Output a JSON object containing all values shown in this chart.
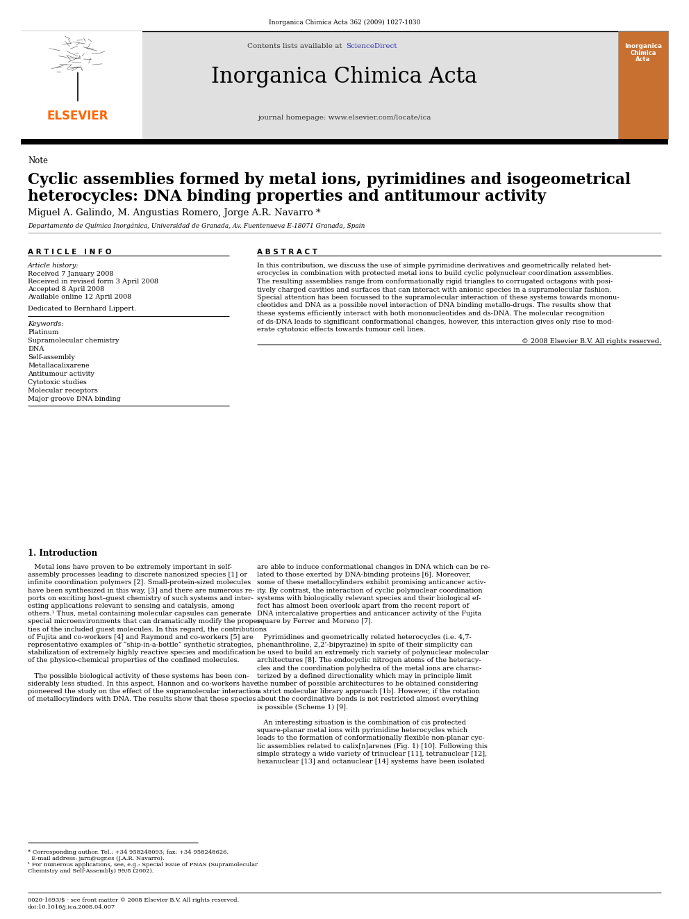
{
  "journal_ref": "Inorganica Chimica Acta 362 (2009) 1027-1030",
  "contents_line": "Contents lists available at ",
  "sciencedirect_text": "ScienceDirect",
  "sciencedirect_color": "#3333AA",
  "journal_name": "Inorganica Chimica Acta",
  "journal_homepage": "journal homepage: www.elsevier.com/locate/ica",
  "elsevier_color": "#FF6600",
  "header_bg": "#E0E0E0",
  "note_label": "Note",
  "article_title_line1": "Cyclic assemblies formed by metal ions, pyrimidines and isogeometrical",
  "article_title_line2": "heterocycles: DNA binding properties and antitumour activity",
  "authors": "Miguel A. Galindo, M. Angustias Romero, Jorge A.R. Navarro *",
  "affiliation": "Departamento de Química Inorgánica, Universidad de Granada, Av. Fuentenueva E-18071 Granada, Spain",
  "article_info_header": "A R T I C L E   I N F O",
  "abstract_header": "A B S T R A C T",
  "article_history_label": "Article history:",
  "received": "Received 7 January 2008",
  "revised": "Received in revised form 3 April 2008",
  "accepted": "Accepted 8 April 2008",
  "available": "Available online 12 April 2008",
  "dedicated": "Dedicated to Bernhard Lippert.",
  "keywords_label": "Keywords:",
  "keywords": [
    "Platinum",
    "Supramolecular chemistry",
    "DNA",
    "Self-assembly",
    "Metallacalixarene",
    "Antitumour activity",
    "Cytotoxic studies",
    "Molecular receptors",
    "Major groove DNA binding"
  ],
  "abstract_lines": [
    "In this contribution, we discuss the use of simple pyrimidine derivatives and geometrically related het-",
    "erocycles in combination with protected metal ions to build cyclic polynuclear coordination assemblies.",
    "The resulting assemblies range from conformationally rigid triangles to corrugated octagons with posi-",
    "tively charged cavities and surfaces that can interact with anionic species in a supramolecular fashion.",
    "Special attention has been focussed to the supramolecular interaction of these systems towards mononu-",
    "cleotides and DNA as a possible novel interaction of DNA binding metallo-drugs. The results show that",
    "these systems efficiently interact with both mononucleotides and ds-DNA. The molecular recognition",
    "of ds-DNA leads to significant conformational changes, however, this interaction gives only rise to mod-",
    "erate cytotoxic effects towards tumour cell lines."
  ],
  "copyright": "© 2008 Elsevier B.V. All rights reserved.",
  "intro_header": "1. Introduction",
  "left_intro_lines": [
    "   Metal ions have proven to be extremely important in self-",
    "assembly processes leading to discrete nanosized species [1] or",
    "infinite coordination polymers [2]. Small-protein-sized molecules",
    "have been synthesized in this way, [3] and there are numerous re-",
    "ports on exciting host–guest chemistry of such systems and inter-",
    "esting applications relevant to sensing and catalysis, among",
    "others.¹ Thus, metal containing molecular capsules can generate",
    "special microenvironments that can dramatically modify the proper-",
    "ties of the included guest molecules. In this regard, the contributions",
    "of Fujita and co-workers [4] and Raymond and co-workers [5] are",
    "representative examples of “ship-in-a-bottle” synthetic strategies,",
    "stabilization of extremely highly reactive species and modification",
    "of the physico-chemical properties of the confined molecules.",
    "",
    "   The possible biological activity of these systems has been con-",
    "siderably less studied. In this aspect, Hannon and co-workers have",
    "pioneered the study on the effect of the supramolecular interaction",
    "of metallocylinders with DNA. The results show that these species"
  ],
  "right_intro_lines": [
    "are able to induce conformational changes in DNA which can be re-",
    "lated to those exerted by DNA-binding proteins [6]. Moreover,",
    "some of these metallocylinders exhibit promising anticancer activ-",
    "ity. By contrast, the interaction of cyclic polynuclear coordination",
    "systems with biologically relevant species and their biological ef-",
    "fect has almost been overlook apart from the recent report of",
    "DNA intercalative properties and anticancer activity of the Fujita",
    "square by Ferrer and Moreno [7].",
    "",
    "   Pyrimidines and geometrically related heterocycles (i.e. 4,7-",
    "phenanthroline, 2,2’-bipyrazine) in spite of their simplicity can",
    "be used to build an extremely rich variety of polynuclear molecular",
    "architectures [8]. The endocyclic nitrogen atoms of the heteracy-",
    "cles and the coordination polyhedra of the metal ions are charac-",
    "terized by a defined directionality which may in principle limit",
    "the number of possible architectures to be obtained considering",
    "a strict molecular library approach [1b]. However, if the rotation",
    "about the coordinative bonds is not restricted almost everything",
    "is possible (Scheme 1) [9].",
    "",
    "   An interesting situation is the combination of cis protected",
    "square-planar metal ions with pyrimidine heterocycles which",
    "leads to the formation of conformationally flexible non-planar cyc-",
    "lic assemblies related to calix[n]arenes (Fig. 1) [10]. Following this",
    "simple strategy a wide variety of trinuclear [11], tetranuclear [12],",
    "hexanuclear [13] and octanuclear [14] systems have been isolated"
  ],
  "footnote1": "* Corresponding author. Tel.: +34 958248093; fax: +34 958248626.",
  "footnote2": "  E-mail address: jarn@ugr.es (J.A.R. Navarro).",
  "footnote3a": "¹ For numerous applications, see, e.g.: Special issue of PNAS (Supramolecular",
  "footnote3b": "Chemistry and Self-Assembly) 99/8 (2002).",
  "bottom_line1": "0020-1693/$ - see front matter © 2008 Elsevier B.V. All rights reserved.",
  "bottom_line2": "doi:10.1016/j.ica.2008.04.007",
  "bg_color": "#FFFFFF",
  "cover_color": "#C87030"
}
